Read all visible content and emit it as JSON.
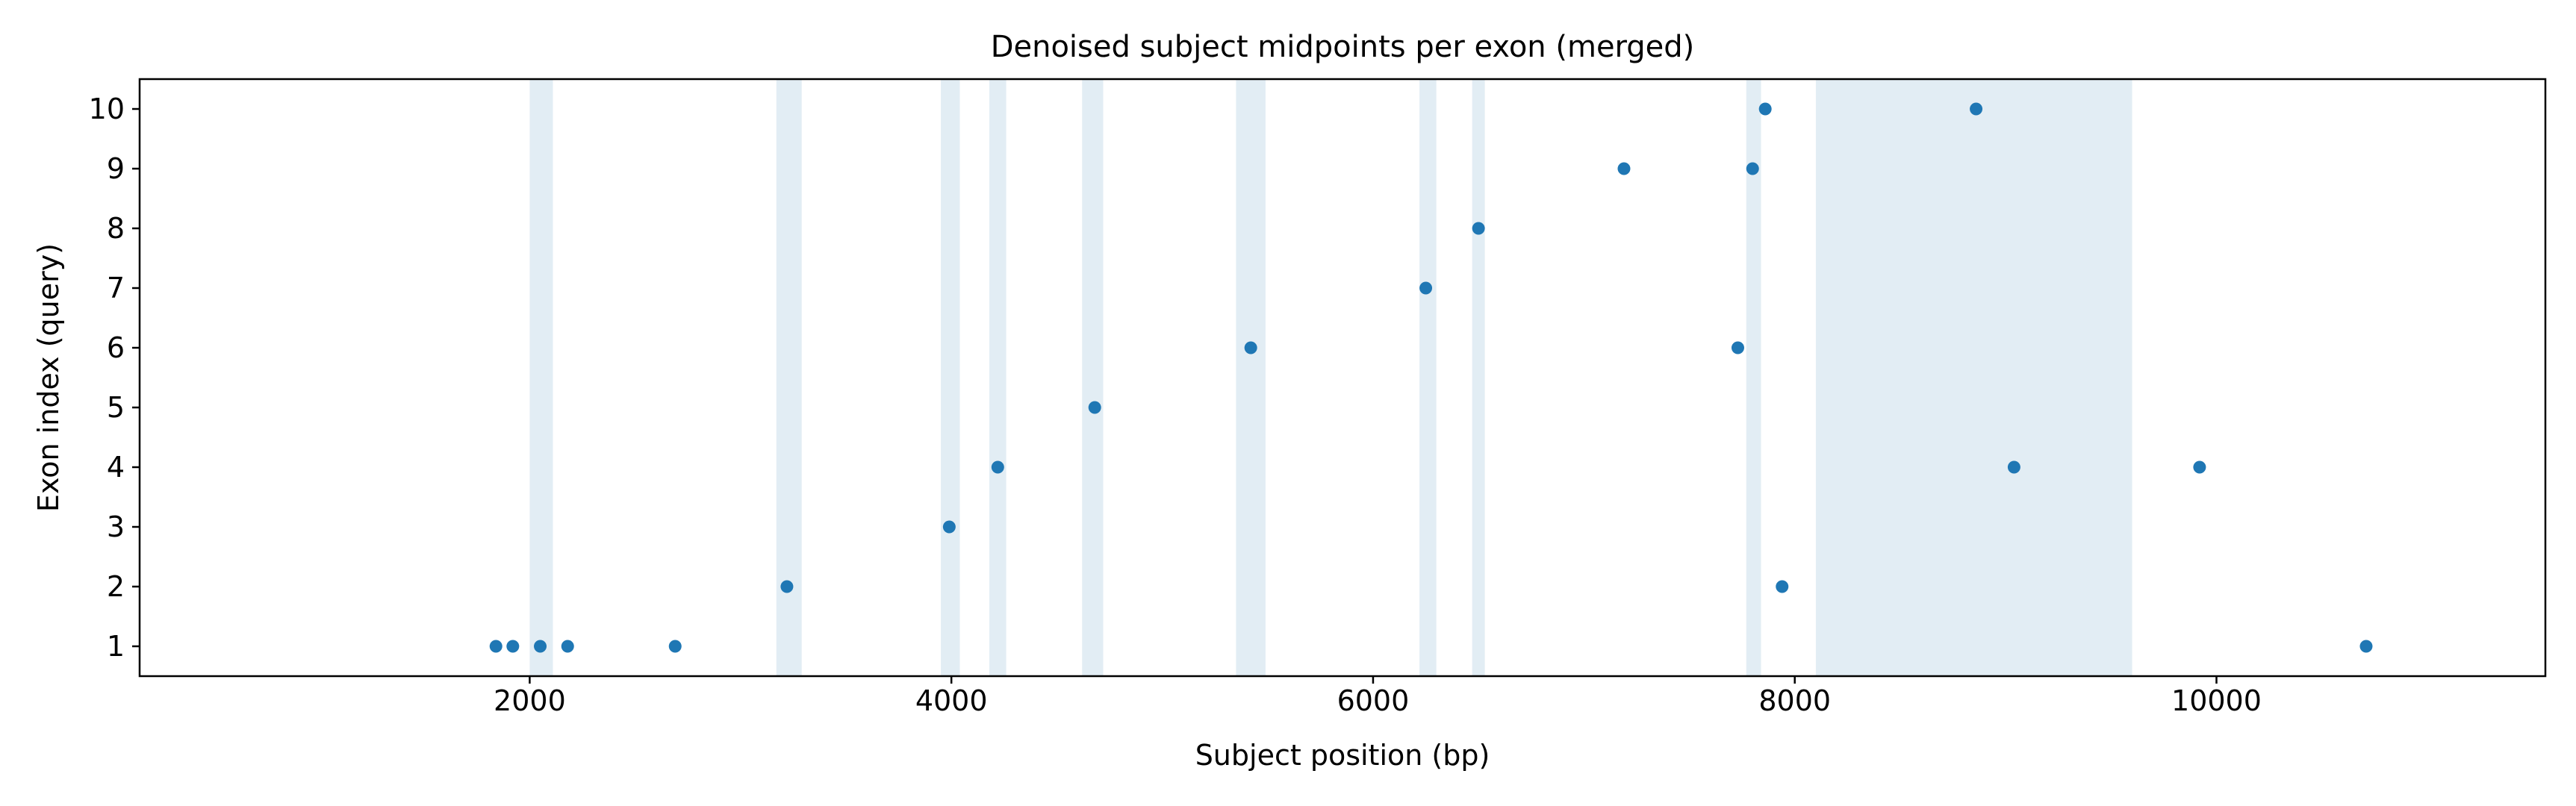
{
  "chart_data": {
    "type": "scatter",
    "title": "Denoised subject midpoints per exon (merged)",
    "xlabel": "Subject position (bp)",
    "ylabel": "Exon index (query)",
    "xlim": [
      150,
      11560
    ],
    "ylim": [
      0.5,
      10.5
    ],
    "xticks": [
      2000,
      4000,
      6000,
      8000,
      10000
    ],
    "yticks": [
      1,
      2,
      3,
      4,
      5,
      6,
      7,
      8,
      9,
      10
    ],
    "grid": false,
    "point_color": "#1f77b4",
    "band_color": "#c6dcea",
    "highlight_spans": [
      [
        2000,
        2110
      ],
      [
        3170,
        3290
      ],
      [
        3950,
        4040
      ],
      [
        4180,
        4260
      ],
      [
        4620,
        4720
      ],
      [
        5350,
        5490
      ],
      [
        6220,
        6300
      ],
      [
        6470,
        6530
      ],
      [
        7770,
        7840
      ],
      [
        8100,
        9600
      ]
    ],
    "series": [
      {
        "x": [
          1840,
          1920,
          2050,
          2180,
          2690,
          3220,
          3990,
          4220,
          4680,
          5420,
          6250,
          6500,
          7190,
          7730,
          7800,
          7860,
          7940,
          8860,
          9040,
          9920,
          10710
        ],
        "y": [
          1,
          1,
          1,
          1,
          1,
          2,
          3,
          4,
          5,
          6,
          7,
          8,
          9,
          6,
          9,
          10,
          2,
          10,
          4,
          4,
          1
        ]
      }
    ]
  }
}
